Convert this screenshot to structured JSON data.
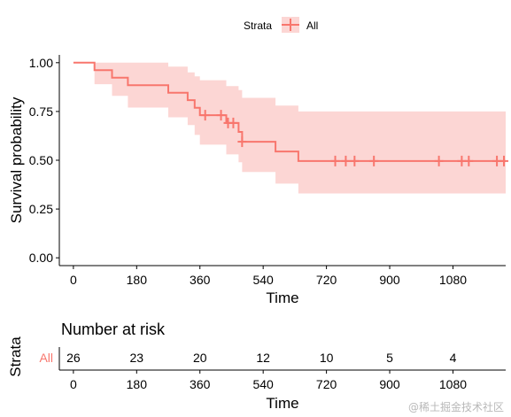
{
  "legend": {
    "title": "Strata",
    "entries": [
      {
        "label": "All",
        "color": "#F8766D"
      }
    ]
  },
  "chart_data": [
    {
      "type": "line",
      "kind": "kaplan-meier",
      "title": "",
      "xlabel": "Time",
      "ylabel": "Survival probability",
      "xlim": [
        -40,
        1230
      ],
      "ylim": [
        -0.04,
        1.04
      ],
      "x_ticks": [
        0,
        180,
        360,
        540,
        720,
        900,
        1080
      ],
      "y_ticks": [
        0,
        0.25,
        0.5,
        0.75,
        1.0
      ],
      "y_tick_labels": [
        "0.00",
        "0.25",
        "0.50",
        "0.75",
        "1.00"
      ],
      "grid": false,
      "legend_position": "top",
      "series": [
        {
          "name": "All",
          "color": "#F8766D",
          "band_color": "#FCD6D4",
          "steps": [
            {
              "x": 0,
              "y": 1.0,
              "lower": 1.0,
              "upper": 1.0
            },
            {
              "x": 60,
              "y": 0.962,
              "lower": 0.89,
              "upper": 1.0
            },
            {
              "x": 110,
              "y": 0.923,
              "lower": 0.83,
              "upper": 1.0
            },
            {
              "x": 155,
              "y": 0.885,
              "lower": 0.77,
              "upper": 1.0
            },
            {
              "x": 270,
              "y": 0.846,
              "lower": 0.72,
              "upper": 0.98
            },
            {
              "x": 325,
              "y": 0.808,
              "lower": 0.68,
              "upper": 0.95
            },
            {
              "x": 345,
              "y": 0.769,
              "lower": 0.63,
              "upper": 0.93
            },
            {
              "x": 360,
              "y": 0.731,
              "lower": 0.58,
              "upper": 0.91
            },
            {
              "x": 435,
              "y": 0.691,
              "lower": 0.53,
              "upper": 0.88
            },
            {
              "x": 470,
              "y": 0.645,
              "lower": 0.49,
              "upper": 0.86
            },
            {
              "x": 480,
              "y": 0.595,
              "lower": 0.44,
              "upper": 0.82
            },
            {
              "x": 575,
              "y": 0.545,
              "lower": 0.38,
              "upper": 0.78
            },
            {
              "x": 640,
              "y": 0.496,
              "lower": 0.33,
              "upper": 0.75
            },
            {
              "x": 1230,
              "y": 0.496,
              "lower": 0.33,
              "upper": 0.75
            }
          ],
          "censored": [
            {
              "x": 375,
              "y": 0.731
            },
            {
              "x": 420,
              "y": 0.731
            },
            {
              "x": 440,
              "y": 0.691
            },
            {
              "x": 455,
              "y": 0.691
            },
            {
              "x": 480,
              "y": 0.595
            },
            {
              "x": 745,
              "y": 0.496
            },
            {
              "x": 775,
              "y": 0.496
            },
            {
              "x": 800,
              "y": 0.496
            },
            {
              "x": 855,
              "y": 0.496
            },
            {
              "x": 1040,
              "y": 0.496
            },
            {
              "x": 1105,
              "y": 0.496
            },
            {
              "x": 1125,
              "y": 0.496
            },
            {
              "x": 1205,
              "y": 0.496
            },
            {
              "x": 1225,
              "y": 0.496
            }
          ]
        }
      ]
    },
    {
      "type": "table",
      "title": "Number at risk",
      "ylabel": "Strata",
      "xlabel": "Time",
      "x_ticks": [
        0,
        180,
        360,
        540,
        720,
        900,
        1080
      ],
      "rows": [
        {
          "stratum": "All",
          "color": "#F8766D",
          "values": [
            26,
            23,
            20,
            12,
            10,
            5,
            4
          ]
        }
      ]
    }
  ],
  "watermark": "@稀土掘金技术社区"
}
